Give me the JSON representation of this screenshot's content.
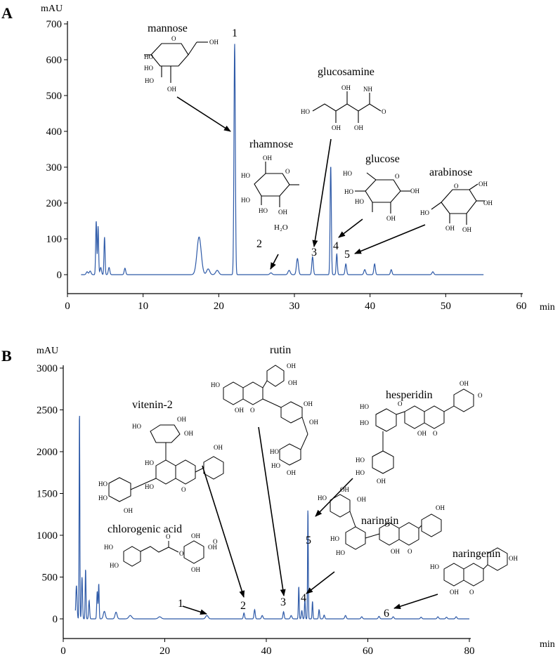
{
  "figure": {
    "trace_color": "#2e5aa8",
    "axis_color": "#000000"
  },
  "chart_data": [
    {
      "panel": "A",
      "type": "line",
      "xlabel": "min",
      "ylabel": "mAU",
      "xlim": [
        0,
        60
      ],
      "ylim": [
        -30,
        700
      ],
      "xticks": [
        0,
        10,
        20,
        30,
        40,
        50,
        60
      ],
      "yticks": [
        0,
        100,
        200,
        300,
        400,
        500,
        600,
        700
      ],
      "baseline": 0,
      "x_end": 55,
      "peaks": [
        {
          "x": 2.6,
          "h": 8,
          "w": 0.12
        },
        {
          "x": 3.0,
          "h": 10,
          "w": 0.12
        },
        {
          "x": 3.8,
          "h": 150,
          "w": 0.07
        },
        {
          "x": 4.05,
          "h": 135,
          "w": 0.07
        },
        {
          "x": 4.4,
          "h": 20,
          "w": 0.1
        },
        {
          "x": 4.9,
          "h": 105,
          "w": 0.07
        },
        {
          "x": 5.5,
          "h": 20,
          "w": 0.1
        },
        {
          "x": 7.6,
          "h": 18,
          "w": 0.1
        },
        {
          "x": 17.4,
          "h": 105,
          "w": 0.28
        },
        {
          "x": 18.6,
          "h": 16,
          "w": 0.2
        },
        {
          "x": 19.8,
          "h": 12,
          "w": 0.2
        },
        {
          "x": 22.1,
          "h": 645,
          "w": 0.09
        },
        {
          "x": 26.9,
          "h": 5,
          "w": 0.15
        },
        {
          "x": 29.3,
          "h": 12,
          "w": 0.15
        },
        {
          "x": 30.4,
          "h": 45,
          "w": 0.13
        },
        {
          "x": 32.4,
          "h": 50,
          "w": 0.1
        },
        {
          "x": 34.8,
          "h": 305,
          "w": 0.08
        },
        {
          "x": 35.6,
          "h": 58,
          "w": 0.08
        },
        {
          "x": 36.8,
          "h": 30,
          "w": 0.1
        },
        {
          "x": 39.3,
          "h": 14,
          "w": 0.12
        },
        {
          "x": 40.6,
          "h": 30,
          "w": 0.1
        },
        {
          "x": 42.8,
          "h": 14,
          "w": 0.1
        },
        {
          "x": 48.3,
          "h": 8,
          "w": 0.12
        }
      ],
      "compounds": [
        {
          "name": "mannose",
          "peak_num": "1"
        },
        {
          "name": "rhamnose",
          "peak_num": "2"
        },
        {
          "name": "glucosamine",
          "peak_num": "3"
        },
        {
          "name": "glucose",
          "peak_num": "4"
        },
        {
          "name": "arabinose",
          "peak_num": "5"
        }
      ],
      "water_label": "H₂O"
    },
    {
      "panel": "B",
      "type": "line",
      "xlabel": "min",
      "ylabel": "mAU",
      "xlim": [
        0,
        80
      ],
      "ylim": [
        -250,
        3000
      ],
      "xticks": [
        0,
        20,
        40,
        60,
        80
      ],
      "yticks": [
        0,
        500,
        1000,
        1500,
        2000,
        2500,
        3000
      ],
      "baseline": 0,
      "x_end": 80,
      "peaks": [
        {
          "x": 2.6,
          "h": 400,
          "w": 0.12
        },
        {
          "x": 3.2,
          "h": 2520,
          "w": 0.07
        },
        {
          "x": 3.7,
          "h": 500,
          "w": 0.1
        },
        {
          "x": 4.4,
          "h": 600,
          "w": 0.08
        },
        {
          "x": 5.1,
          "h": 220,
          "w": 0.1
        },
        {
          "x": 6.7,
          "h": 330,
          "w": 0.1
        },
        {
          "x": 7.0,
          "h": 420,
          "w": 0.08
        },
        {
          "x": 8.1,
          "h": 90,
          "w": 0.2
        },
        {
          "x": 10.4,
          "h": 80,
          "w": 0.2
        },
        {
          "x": 13.2,
          "h": 40,
          "w": 0.3
        },
        {
          "x": 19.0,
          "h": 25,
          "w": 0.3
        },
        {
          "x": 28.3,
          "h": 40,
          "w": 0.25
        },
        {
          "x": 35.6,
          "h": 70,
          "w": 0.12
        },
        {
          "x": 37.7,
          "h": 110,
          "w": 0.12
        },
        {
          "x": 39.2,
          "h": 40,
          "w": 0.15
        },
        {
          "x": 43.4,
          "h": 85,
          "w": 0.12
        },
        {
          "x": 44.9,
          "h": 40,
          "w": 0.15
        },
        {
          "x": 46.4,
          "h": 390,
          "w": 0.08
        },
        {
          "x": 47.0,
          "h": 100,
          "w": 0.1
        },
        {
          "x": 47.6,
          "h": 240,
          "w": 0.08
        },
        {
          "x": 48.2,
          "h": 1330,
          "w": 0.07
        },
        {
          "x": 49.1,
          "h": 210,
          "w": 0.08
        },
        {
          "x": 50.4,
          "h": 110,
          "w": 0.1
        },
        {
          "x": 51.4,
          "h": 45,
          "w": 0.12
        },
        {
          "x": 55.6,
          "h": 40,
          "w": 0.15
        },
        {
          "x": 58.8,
          "h": 25,
          "w": 0.15
        },
        {
          "x": 62.2,
          "h": 30,
          "w": 0.15
        },
        {
          "x": 65.0,
          "h": 25,
          "w": 0.15
        },
        {
          "x": 70.5,
          "h": 20,
          "w": 0.15
        },
        {
          "x": 73.8,
          "h": 25,
          "w": 0.15
        },
        {
          "x": 75.5,
          "h": 20,
          "w": 0.15
        },
        {
          "x": 77.4,
          "h": 25,
          "w": 0.15
        }
      ],
      "compounds": [
        {
          "name": "chlorogenic acid",
          "peak_num": "1"
        },
        {
          "name": "vitenin-2",
          "peak_num": "2"
        },
        {
          "name": "rutin",
          "peak_num": "3"
        },
        {
          "name": "naringin",
          "peak_num": "4"
        },
        {
          "name": "hesperidin",
          "peak_num": "5"
        },
        {
          "name": "naringenin",
          "peak_num": "6"
        }
      ]
    }
  ]
}
